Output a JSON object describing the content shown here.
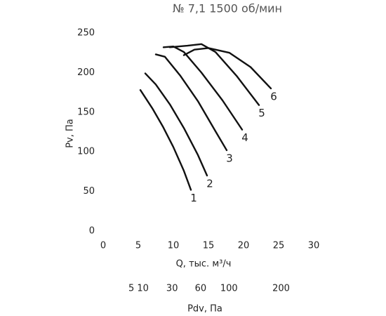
{
  "chart_data": {
    "type": "line",
    "title": "№ 7,1 1500 об/мин",
    "x_label": "Q, тыс. м³/ч",
    "y_label": "Pv, Па",
    "x2_label": "Pdv, Па",
    "xlim": [
      0,
      30
    ],
    "xticks": [
      0,
      5,
      10,
      15,
      20,
      25,
      30
    ],
    "ylim": [
      0,
      250
    ],
    "yticks": [
      0,
      50,
      100,
      150,
      200,
      250
    ],
    "x2lim": [
      0,
      280
    ],
    "x2scale": "sqrt",
    "x2ticks": [
      5,
      10,
      30,
      60,
      100,
      200
    ],
    "color": "#111111",
    "series": [
      {
        "name": "1",
        "x": [
          5.3,
          7,
          8.5,
          10,
          11.5,
          12.5
        ],
        "values": [
          178,
          155,
          132,
          106,
          76,
          52
        ]
      },
      {
        "name": "2",
        "x": [
          6,
          7.5,
          9.5,
          11.5,
          13.5,
          14.8
        ],
        "values": [
          199,
          185,
          160,
          130,
          96,
          70
        ]
      },
      {
        "name": "3",
        "x": [
          7.5,
          8.8,
          11,
          13.5,
          16,
          17.6
        ],
        "values": [
          223,
          220,
          196,
          164,
          126,
          102
        ]
      },
      {
        "name": "4",
        "x": [
          8.6,
          10,
          11.5,
          14,
          17,
          19.8
        ],
        "values": [
          232,
          233,
          226,
          200,
          165,
          128
        ]
      },
      {
        "name": "5",
        "x": [
          9.5,
          12,
          14,
          16,
          19,
          22.2
        ],
        "values": [
          232,
          234,
          236,
          226,
          196,
          159
        ]
      },
      {
        "name": "6",
        "x": [
          11.5,
          13,
          15,
          18,
          21,
          23.9
        ],
        "values": [
          222,
          229,
          231,
          225,
          207,
          180
        ]
      }
    ]
  }
}
